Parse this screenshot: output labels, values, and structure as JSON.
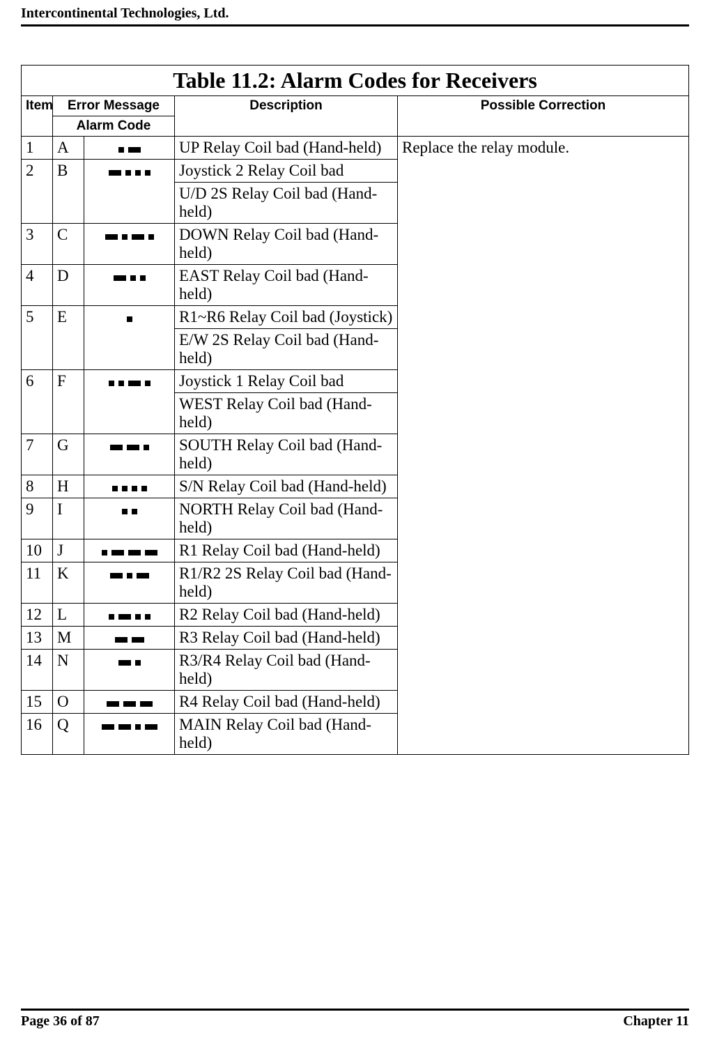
{
  "header": {
    "company": "Intercontinental Technologies, Ltd."
  },
  "table": {
    "title": "Table 11.2:  Alarm Codes for Receivers",
    "columns": {
      "item": "Item",
      "error_message": "Error Message",
      "alarm_code": "Alarm Code",
      "description": "Description",
      "possible_correction": "Possible Correction"
    },
    "correction_text": "Replace the relay module."
  },
  "rows": [
    {
      "item": "1",
      "err": "A",
      "code": ". -",
      "desc": [
        "UP Relay Coil bad (Hand-held)"
      ]
    },
    {
      "item": "2",
      "err": "B",
      "code": "- . . .",
      "desc": [
        "Joystick 2 Relay Coil bad",
        "U/D 2S Relay Coil bad (Hand-held)"
      ]
    },
    {
      "item": "3",
      "err": "C",
      "code": "- . - .",
      "desc": [
        "DOWN Relay Coil bad (Hand-held)"
      ]
    },
    {
      "item": "4",
      "err": "D",
      "code": "- . .",
      "desc": [
        "EAST Relay Coil bad (Hand-held)"
      ]
    },
    {
      "item": "5",
      "err": "E",
      "code": ".",
      "desc": [
        "R1~R6 Relay Coil bad (Joystick)",
        "E/W 2S Relay Coil bad (Hand-held)"
      ]
    },
    {
      "item": "6",
      "err": "F",
      "code": ". . - .",
      "desc": [
        "Joystick 1 Relay Coil bad",
        "WEST Relay Coil bad (Hand-held)"
      ]
    },
    {
      "item": "7",
      "err": "G",
      "code": "- - .",
      "desc": [
        "SOUTH Relay Coil bad (Hand-held)"
      ]
    },
    {
      "item": "8",
      "err": "H",
      "code": ". . . .",
      "desc": [
        "S/N Relay Coil bad (Hand-held)"
      ]
    },
    {
      "item": "9",
      "err": "I",
      "code": ". .",
      "desc": [
        "NORTH Relay Coil bad (Hand-held)"
      ]
    },
    {
      "item": "10",
      "err": "J",
      "code": ". - - -",
      "desc": [
        "R1 Relay Coil bad (Hand-held)"
      ]
    },
    {
      "item": "11",
      "err": "K",
      "code": "- . -",
      "desc": [
        "R1/R2  2S Relay Coil bad (Hand-held)"
      ]
    },
    {
      "item": "12",
      "err": "L",
      "code": ". - . .",
      "desc": [
        "R2 Relay Coil bad (Hand-held)"
      ]
    },
    {
      "item": "13",
      "err": "M",
      "code": "- -",
      "desc": [
        "R3 Relay Coil bad (Hand-held)"
      ]
    },
    {
      "item": "14",
      "err": "N",
      "code": "- .",
      "desc": [
        "R3/R4 Relay Coil bad (Hand-held)"
      ]
    },
    {
      "item": "15",
      "err": "O",
      "code": "- - -",
      "desc": [
        "R4 Relay Coil bad (Hand-held)"
      ]
    },
    {
      "item": "16",
      "err": "Q",
      "code": "- - . -",
      "desc": [
        "MAIN Relay Coil bad (Hand-held)"
      ]
    }
  ],
  "footer": {
    "left": "Page 36 of 87",
    "right": "Chapter 11"
  }
}
